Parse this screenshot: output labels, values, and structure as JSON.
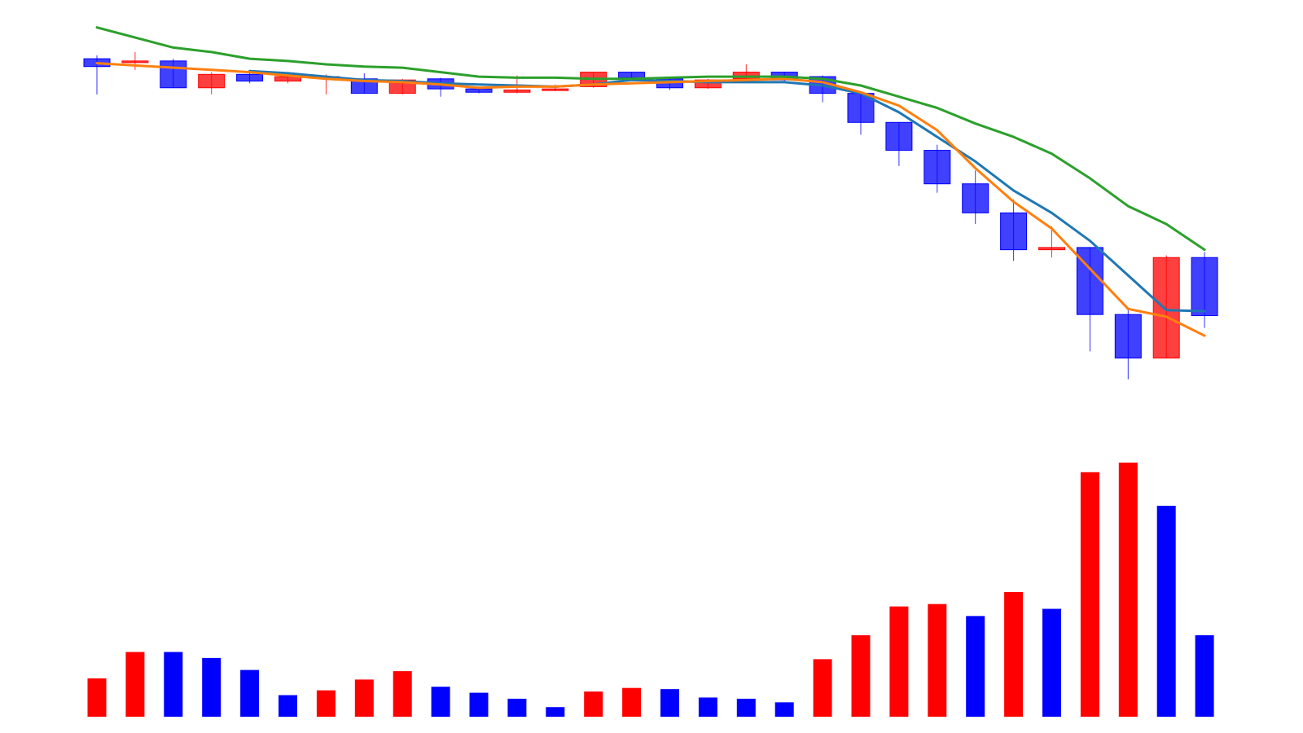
{
  "chart_data": {
    "type": "candlestick",
    "title": "",
    "xlabel": "",
    "ylabel": "",
    "grid": false,
    "legend": "none",
    "up_color": "#ff0000",
    "down_color": "#0000ff",
    "candles": [
      {
        "open": 99.2,
        "high": 99.5,
        "low": 96.0,
        "close": 98.5
      },
      {
        "open": 99.0,
        "high": 99.8,
        "low": 98.2,
        "close": 99.0
      },
      {
        "open": 99.0,
        "high": 99.2,
        "low": 96.6,
        "close": 96.6
      },
      {
        "open": 96.6,
        "high": 98.0,
        "low": 96.0,
        "close": 97.8
      },
      {
        "open": 97.8,
        "high": 98.0,
        "low": 97.0,
        "close": 97.2
      },
      {
        "open": 97.2,
        "high": 98.0,
        "low": 97.0,
        "close": 97.6
      },
      {
        "open": 97.6,
        "high": 97.8,
        "low": 96.0,
        "close": 97.6
      },
      {
        "open": 97.4,
        "high": 97.9,
        "low": 96.1,
        "close": 96.1
      },
      {
        "open": 96.1,
        "high": 97.4,
        "low": 96.0,
        "close": 97.3
      },
      {
        "open": 97.4,
        "high": 97.5,
        "low": 95.8,
        "close": 96.5
      },
      {
        "open": 96.5,
        "high": 96.7,
        "low": 96.1,
        "close": 96.2
      },
      {
        "open": 96.2,
        "high": 97.7,
        "low": 96.1,
        "close": 96.4
      },
      {
        "open": 96.4,
        "high": 96.9,
        "low": 96.3,
        "close": 96.5
      },
      {
        "open": 96.7,
        "high": 98.0,
        "low": 96.6,
        "close": 98.0
      },
      {
        "open": 98.0,
        "high": 98.0,
        "low": 97.4,
        "close": 97.5
      },
      {
        "open": 97.4,
        "high": 97.5,
        "low": 96.4,
        "close": 96.6
      },
      {
        "open": 96.6,
        "high": 97.4,
        "low": 96.5,
        "close": 97.3
      },
      {
        "open": 97.4,
        "high": 98.7,
        "low": 97.2,
        "close": 98.0
      },
      {
        "open": 98.0,
        "high": 98.0,
        "low": 97.1,
        "close": 97.3
      },
      {
        "open": 97.6,
        "high": 97.7,
        "low": 95.3,
        "close": 96.1
      },
      {
        "open": 96.1,
        "high": 96.1,
        "low": 92.4,
        "close": 93.5
      },
      {
        "open": 93.5,
        "high": 93.5,
        "low": 89.6,
        "close": 91.0
      },
      {
        "open": 91.0,
        "high": 91.5,
        "low": 87.2,
        "close": 88.0
      },
      {
        "open": 88.0,
        "high": 89.2,
        "low": 84.4,
        "close": 85.4
      },
      {
        "open": 85.4,
        "high": 86.6,
        "low": 81.1,
        "close": 82.1
      },
      {
        "open": 82.1,
        "high": 84.2,
        "low": 81.4,
        "close": 82.3
      },
      {
        "open": 82.3,
        "high": 82.3,
        "low": 73.0,
        "close": 76.3
      },
      {
        "open": 76.3,
        "high": 76.8,
        "low": 70.5,
        "close": 72.4
      },
      {
        "open": 72.4,
        "high": 81.6,
        "low": 72.4,
        "close": 81.4
      },
      {
        "open": 81.4,
        "high": 81.9,
        "low": 75.1,
        "close": 76.2
      }
    ],
    "ma_lines": [
      {
        "color": "#1f77b4",
        "values": [
          null,
          null,
          null,
          null,
          98.1,
          97.9,
          97.6,
          97.3,
          97.2,
          97.0,
          96.9,
          96.8,
          96.7,
          96.9,
          97.3,
          97.2,
          97.1,
          97.1,
          97.1,
          96.8,
          96.1,
          94.4,
          92.2,
          90.0,
          87.4,
          85.4,
          82.9,
          null,
          76.7,
          76.6
        ]
      },
      {
        "color": "#ff7f0e",
        "values": [
          98.8,
          null,
          null,
          98.2,
          98.0,
          97.7,
          97.4,
          97.2,
          97.1,
          96.9,
          96.6,
          96.7,
          96.7,
          96.9,
          97.0,
          97.1,
          97.2,
          97.3,
          97.4,
          97.1,
          96.2,
          95.0,
          92.8,
          89.4,
          86.4,
          84.0,
          null,
          76.8,
          76.1,
          74.4
        ]
      },
      {
        "color": "#2ca02c",
        "values": [
          102.0,
          101.1,
          100.2,
          99.8,
          99.2,
          99.0,
          98.7,
          98.5,
          98.4,
          98.0,
          97.6,
          97.5,
          97.5,
          97.4,
          97.4,
          97.5,
          97.6,
          97.6,
          97.6,
          97.4,
          96.8,
          95.8,
          94.8,
          93.4,
          92.2,
          90.7,
          88.5,
          86.0,
          84.4,
          82.1
        ]
      }
    ],
    "volume": [
      320,
      540,
      540,
      490,
      390,
      180,
      220,
      310,
      380,
      250,
      200,
      150,
      80,
      210,
      240,
      230,
      160,
      150,
      120,
      480,
      680,
      920,
      940,
      840,
      1040,
      900,
      2040,
      2120,
      1760,
      680
    ],
    "volume_colors": [
      "#ff0000",
      "#ff0000",
      "#0000ff",
      "#0000ff",
      "#0000ff",
      "#0000ff",
      "#ff0000",
      "#ff0000",
      "#ff0000",
      "#0000ff",
      "#0000ff",
      "#0000ff",
      "#0000ff",
      "#ff0000",
      "#ff0000",
      "#0000ff",
      "#0000ff",
      "#0000ff",
      "#0000ff",
      "#ff0000",
      "#ff0000",
      "#ff0000",
      "#ff0000",
      "#0000ff",
      "#ff0000",
      "#0000ff",
      "#ff0000",
      "#ff0000",
      "#0000ff",
      "#0000ff"
    ],
    "price_range": [
      68.0,
      103.0
    ],
    "volume_range": [
      0,
      2120
    ]
  }
}
